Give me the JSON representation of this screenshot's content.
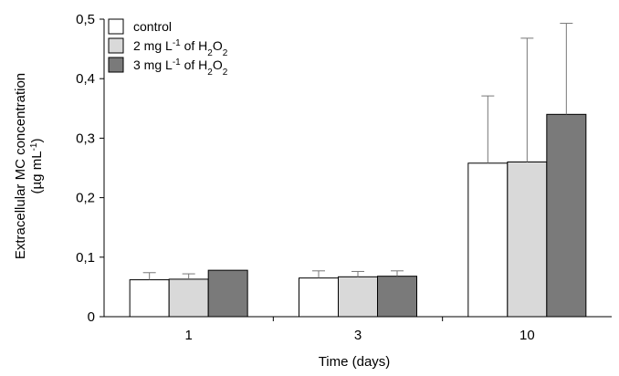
{
  "chart_data": {
    "type": "bar",
    "xlabel": "Time (days)",
    "ylabel_line1": "Extracellular MC concentration",
    "ylabel_line2": "(µg mL-1)",
    "categories": [
      "1",
      "3",
      "10"
    ],
    "ylim": [
      0,
      0.5
    ],
    "yticks": [
      "0",
      "0,1",
      "0,2",
      "0,3",
      "0,4",
      "0,5"
    ],
    "grid": false,
    "legend_position": "top-left",
    "series": [
      {
        "name": "control",
        "legend_parts": {
          "pre": "control",
          "sup": "",
          "post": "",
          "sub1": "",
          "mid": "",
          "sub2": ""
        },
        "color": "#ffffff",
        "values": [
          0.062,
          0.065,
          0.258
        ],
        "errors": [
          0.012,
          0.012,
          0.113
        ]
      },
      {
        "name": "2 mg L-1 of H2O2",
        "legend_parts": {
          "pre": "2 mg L",
          "sup": "-1",
          "post": " of H",
          "sub1": "2",
          "mid": "O",
          "sub2": "2"
        },
        "color": "#d9d9d9",
        "values": [
          0.063,
          0.067,
          0.26
        ],
        "errors": [
          0.009,
          0.009,
          0.208
        ]
      },
      {
        "name": "3 mg L-1 of H2O2",
        "legend_parts": {
          "pre": "3 mg L",
          "sup": "-1",
          "post": " of H",
          "sub1": "2",
          "mid": "O",
          "sub2": "2"
        },
        "color": "#7a7a7a",
        "values": [
          0.078,
          0.068,
          0.34
        ],
        "errors": [
          0.0,
          0.009,
          0.153
        ]
      }
    ]
  }
}
